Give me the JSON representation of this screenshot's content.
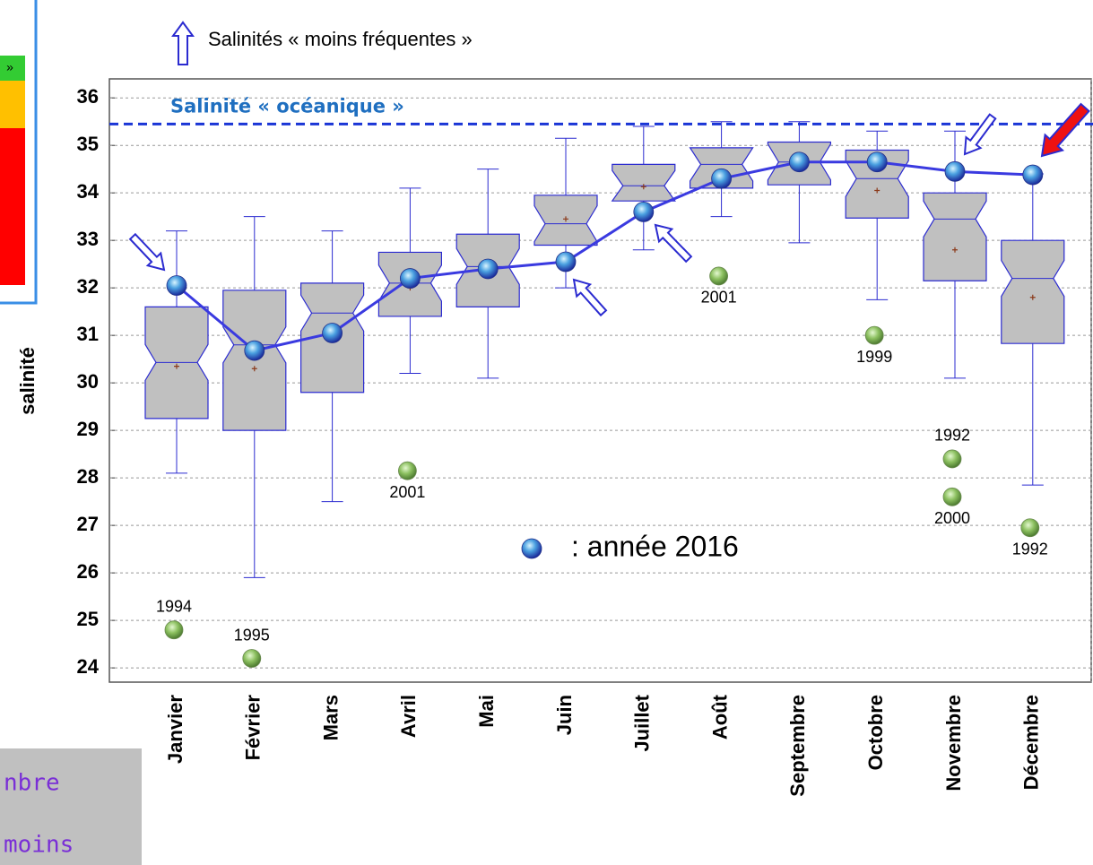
{
  "chart_data": {
    "type": "box",
    "categories": [
      "Janvier",
      "Février",
      "Mars",
      "Avril",
      "Mai",
      "Juin",
      "Juillet",
      "Août",
      "Septembre",
      "Octobre",
      "Novembre",
      "Décembre"
    ],
    "boxes": {
      "color": "#c0c0c0",
      "edge_color": "#2b2bd0",
      "mean_color": "#8b3a1a",
      "low": [
        28.1,
        25.9,
        27.5,
        30.2,
        30.1,
        32.0,
        32.8,
        33.5,
        32.95,
        31.75,
        30.1,
        27.85
      ],
      "q1": [
        29.25,
        29.0,
        29.8,
        31.4,
        31.6,
        32.9,
        33.83,
        34.1,
        34.17,
        33.47,
        32.15,
        30.83
      ],
      "median": [
        30.43,
        30.8,
        31.47,
        32.1,
        32.45,
        33.35,
        34.15,
        34.6,
        34.65,
        34.3,
        33.45,
        32.2
      ],
      "q3": [
        31.6,
        31.95,
        32.1,
        32.75,
        33.13,
        33.95,
        34.6,
        34.95,
        35.07,
        34.9,
        34.0,
        33.0
      ],
      "high": [
        33.2,
        33.5,
        33.2,
        34.1,
        34.5,
        35.15,
        35.4,
        35.5,
        35.5,
        35.3,
        35.3,
        34.4
      ],
      "mean": [
        30.35,
        30.3,
        null,
        32.0,
        null,
        33.45,
        34.13,
        null,
        null,
        34.05,
        32.8,
        31.8
      ]
    },
    "line_series": {
      "name": ": année 2016",
      "color": "#3a3ae0",
      "values": [
        32.05,
        30.68,
        31.05,
        32.2,
        32.4,
        32.55,
        33.6,
        34.3,
        34.65,
        34.65,
        34.45,
        34.38
      ]
    },
    "outliers": [
      {
        "category": "Janvier",
        "value": 24.8,
        "label": "1994"
      },
      {
        "category": "Février",
        "value": 24.2,
        "label": "1995"
      },
      {
        "category": "Avril",
        "value": 28.15,
        "label": "2001"
      },
      {
        "category": "Août",
        "value": 32.25,
        "label": "2001"
      },
      {
        "category": "Octobre",
        "value": 31.0,
        "label": "1999"
      },
      {
        "category": "Novembre",
        "value": 28.4,
        "label": "1992"
      },
      {
        "category": "Novembre",
        "value": 27.6,
        "label": "2000"
      },
      {
        "category": "Décembre",
        "value": 26.95,
        "label": "1992"
      }
    ],
    "reference_line": {
      "label": "Salinité « océanique »",
      "value": 35.45,
      "color": "#1a35d6"
    },
    "arrow_legend": "Salinités « moins fréquentes »",
    "ylabel": "salinité",
    "ylim": [
      23.7,
      36.4
    ],
    "yticks": [
      24,
      25,
      26,
      27,
      28,
      29,
      30,
      31,
      32,
      33,
      34,
      35,
      36
    ],
    "grid": true
  },
  "side_panel": {
    "marker": "»"
  },
  "note": {
    "lines": [
      "nbre",
      "moins"
    ]
  }
}
